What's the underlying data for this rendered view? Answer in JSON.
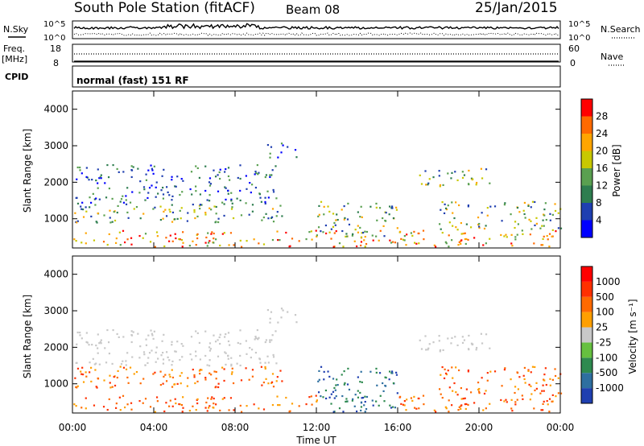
{
  "header": {
    "station": "South Pole Station (fitACF)",
    "beam": "Beam 08",
    "date": "25/Jan/2015"
  },
  "panels": {
    "nsky_label": "N.Sky",
    "nsky_ticks": [
      "10^5",
      "10^0"
    ],
    "nsearch_label": "N.Search",
    "nsearch_ticks": [
      "10^5",
      "10^0"
    ],
    "freq_label": "Freq.",
    "freq_unit": "[MHz]",
    "freq_ticks": [
      "18",
      "8"
    ],
    "nave_label": "Nave",
    "nave_ticks": [
      "60",
      "0"
    ],
    "cpid_label": "CPID",
    "cpid_text": "normal (fast) 151 RF"
  },
  "chart_data": [
    {
      "type": "heatmap",
      "panel": "power",
      "ylabel": "Slant Range [km]",
      "yticks": [
        1000,
        2000,
        3000,
        4000
      ],
      "ylim": [
        200,
        4500
      ],
      "xlabel": "Time UT",
      "xticks": [
        "00:00",
        "04:00",
        "08:00",
        "12:00",
        "16:00",
        "20:00",
        "00:00"
      ],
      "xlim_hours": [
        0,
        24
      ],
      "colorbar": {
        "label": "Power [dB]",
        "ticks": [
          "4",
          "8",
          "12",
          "16",
          "20",
          "24",
          "28"
        ],
        "colors": [
          "#0000ff",
          "#1f3fb0",
          "#2e7d4f",
          "#5aa050",
          "#c8c800",
          "#ffa500",
          "#ff6a00",
          "#ff0000"
        ]
      },
      "scatter_bands": [
        {
          "t0": 0.0,
          "t1": 24.0,
          "r0": 250,
          "r1": 700,
          "level": "high"
        },
        {
          "t0": 0.0,
          "t1": 10.5,
          "r0": 900,
          "r1": 1400,
          "level": "mid"
        },
        {
          "t0": 0.0,
          "t1": 10.0,
          "r0": 1400,
          "r1": 2500,
          "level": "low"
        },
        {
          "t0": 9.5,
          "t1": 11.2,
          "r0": 2700,
          "r1": 3100,
          "level": "low"
        },
        {
          "t0": 12.0,
          "t1": 16.0,
          "r0": 500,
          "r1": 1500,
          "level": "mid"
        },
        {
          "t0": 17.0,
          "t1": 21.0,
          "r0": 1900,
          "r1": 2400,
          "level": "mid"
        },
        {
          "t0": 18.0,
          "t1": 24.0,
          "r0": 700,
          "r1": 1500,
          "level": "mid"
        }
      ]
    },
    {
      "type": "heatmap",
      "panel": "velocity",
      "ylabel": "Slant Range [km]",
      "yticks": [
        1000,
        2000,
        3000,
        4000
      ],
      "ylim": [
        200,
        4500
      ],
      "xlabel": "Time UT",
      "xticks": [
        "00:00",
        "04:00",
        "08:00",
        "12:00",
        "16:00",
        "20:00",
        "00:00"
      ],
      "xlim_hours": [
        0,
        24
      ],
      "colorbar": {
        "label": "Velocity [m s⁻¹]",
        "ticks": [
          "1000",
          "500",
          "100",
          "25",
          "-25",
          "-100",
          "-500",
          "-1000"
        ],
        "colors": [
          "#1f3fb0",
          "#2e6fa0",
          "#2e8a4f",
          "#66c040",
          "#c8c8c8",
          "#ff9f00",
          "#ff6a00",
          "#ff3000",
          "#ff0000"
        ]
      }
    }
  ],
  "colors": {
    "frame": "#000000",
    "background": "#ffffff"
  }
}
